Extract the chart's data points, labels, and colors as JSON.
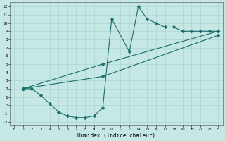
{
  "bg_color": "#c5e8e5",
  "grid_color": "#b0d8d5",
  "line_color": "#1a6b6b",
  "xlabel": "Humidex (Indice chaleur)",
  "xlim": [
    -0.5,
    23.5
  ],
  "ylim": [
    -2.5,
    12.5
  ],
  "xticks": [
    0,
    1,
    2,
    3,
    4,
    5,
    6,
    7,
    8,
    9,
    10,
    11,
    12,
    13,
    14,
    15,
    16,
    17,
    18,
    19,
    20,
    21,
    22,
    23
  ],
  "yticks": [
    -2,
    -1,
    0,
    1,
    2,
    3,
    4,
    5,
    6,
    7,
    8,
    9,
    10,
    11,
    12
  ],
  "curve1_x": [
    1,
    2,
    3,
    4,
    5,
    6,
    7,
    8,
    9,
    10,
    11,
    13,
    14,
    15,
    16,
    17,
    18,
    19,
    20,
    21,
    22,
    23
  ],
  "curve1_y": [
    2.0,
    2.0,
    1.2,
    0.2,
    -0.8,
    -1.3,
    -1.5,
    -1.5,
    -1.3,
    -0.3,
    10.5,
    6.5,
    12.0,
    10.5,
    10.0,
    9.5,
    9.5,
    9.0,
    9.0,
    9.0,
    9.0,
    9.0
  ],
  "curve2_x": [
    1,
    10,
    23
  ],
  "curve2_y": [
    2.0,
    5.0,
    9.0
  ],
  "curve3_x": [
    1,
    10,
    23
  ],
  "curve3_y": [
    2.0,
    3.5,
    8.5
  ],
  "marker_size": 2.5,
  "lw": 0.8
}
